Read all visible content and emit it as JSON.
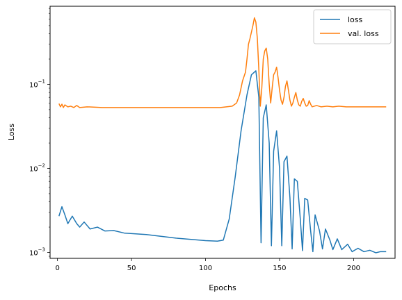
{
  "chart_data": {
    "type": "line",
    "xlabel": "Epochs",
    "ylabel": "Loss",
    "yscale": "log",
    "xlim": [
      -5,
      228
    ],
    "ylim": [
      0.00085,
      0.85
    ],
    "x_ticks": [
      0,
      50,
      100,
      150,
      200
    ],
    "y_ticks": [
      {
        "value": 0.001,
        "base": "10",
        "exp": "−3"
      },
      {
        "value": 0.01,
        "base": "10",
        "exp": "−2"
      },
      {
        "value": 0.1,
        "base": "10",
        "exp": "−1"
      }
    ],
    "grid": false,
    "legend_position": "top-right",
    "series": [
      {
        "name": "loss",
        "color": "#1f77b4",
        "points": [
          [
            1,
            0.0027
          ],
          [
            3,
            0.0035
          ],
          [
            5,
            0.0028
          ],
          [
            7,
            0.0022
          ],
          [
            10,
            0.0027
          ],
          [
            13,
            0.0022
          ],
          [
            15,
            0.002
          ],
          [
            18,
            0.0023
          ],
          [
            22,
            0.0019
          ],
          [
            27,
            0.002
          ],
          [
            32,
            0.0018
          ],
          [
            38,
            0.00182
          ],
          [
            45,
            0.0017
          ],
          [
            60,
            0.00163
          ],
          [
            80,
            0.00148
          ],
          [
            100,
            0.00138
          ],
          [
            108,
            0.00136
          ],
          [
            112,
            0.0014
          ],
          [
            116,
            0.0025
          ],
          [
            120,
            0.0078
          ],
          [
            124,
            0.028
          ],
          [
            128,
            0.075
          ],
          [
            131,
            0.13
          ],
          [
            134,
            0.145
          ],
          [
            136,
            0.07
          ],
          [
            137.5,
            0.0013
          ],
          [
            139,
            0.04
          ],
          [
            141,
            0.057
          ],
          [
            143,
            0.02
          ],
          [
            144.5,
            0.0012
          ],
          [
            146,
            0.016
          ],
          [
            148,
            0.028
          ],
          [
            150,
            0.01
          ],
          [
            151.5,
            0.0012
          ],
          [
            153,
            0.012
          ],
          [
            155,
            0.014
          ],
          [
            157,
            0.0045
          ],
          [
            158.5,
            0.0011
          ],
          [
            160,
            0.0075
          ],
          [
            162,
            0.007
          ],
          [
            164,
            0.0025
          ],
          [
            165.5,
            0.00105
          ],
          [
            167,
            0.0044
          ],
          [
            169,
            0.0042
          ],
          [
            171,
            0.0018
          ],
          [
            172.5,
            0.00102
          ],
          [
            174,
            0.0028
          ],
          [
            177,
            0.0018
          ],
          [
            179,
            0.0011
          ],
          [
            181,
            0.0019
          ],
          [
            184,
            0.0014
          ],
          [
            186,
            0.00108
          ],
          [
            189,
            0.00145
          ],
          [
            192,
            0.00108
          ],
          [
            196,
            0.00125
          ],
          [
            199,
            0.00102
          ],
          [
            203,
            0.00112
          ],
          [
            207,
            0.00102
          ],
          [
            211,
            0.00106
          ],
          [
            215,
            0.00099
          ],
          [
            218,
            0.00102
          ],
          [
            222,
            0.00102
          ]
        ]
      },
      {
        "name": "val. loss",
        "color": "#ff7f0e",
        "points": [
          [
            1,
            0.059
          ],
          [
            2,
            0.054
          ],
          [
            3,
            0.058
          ],
          [
            4,
            0.053
          ],
          [
            5,
            0.057
          ],
          [
            7,
            0.054
          ],
          [
            9,
            0.055
          ],
          [
            11,
            0.053
          ],
          [
            13,
            0.056
          ],
          [
            15,
            0.053
          ],
          [
            20,
            0.054
          ],
          [
            30,
            0.053
          ],
          [
            50,
            0.053
          ],
          [
            80,
            0.053
          ],
          [
            110,
            0.053
          ],
          [
            118,
            0.055
          ],
          [
            121,
            0.06
          ],
          [
            123,
            0.075
          ],
          [
            125,
            0.11
          ],
          [
            127,
            0.14
          ],
          [
            128,
            0.2
          ],
          [
            129,
            0.3
          ],
          [
            130,
            0.35
          ],
          [
            132,
            0.5
          ],
          [
            133,
            0.62
          ],
          [
            134,
            0.55
          ],
          [
            135,
            0.35
          ],
          [
            136,
            0.15
          ],
          [
            137,
            0.055
          ],
          [
            138,
            0.09
          ],
          [
            139,
            0.2
          ],
          [
            140,
            0.25
          ],
          [
            141,
            0.27
          ],
          [
            142,
            0.2
          ],
          [
            143,
            0.1
          ],
          [
            144,
            0.06
          ],
          [
            145,
            0.09
          ],
          [
            146,
            0.13
          ],
          [
            147,
            0.14
          ],
          [
            148,
            0.16
          ],
          [
            149,
            0.12
          ],
          [
            150,
            0.085
          ],
          [
            151,
            0.065
          ],
          [
            152,
            0.058
          ],
          [
            153,
            0.07
          ],
          [
            154,
            0.095
          ],
          [
            155,
            0.11
          ],
          [
            156,
            0.085
          ],
          [
            157,
            0.065
          ],
          [
            158,
            0.055
          ],
          [
            159,
            0.06
          ],
          [
            160,
            0.07
          ],
          [
            161,
            0.08
          ],
          [
            162,
            0.065
          ],
          [
            163,
            0.057
          ],
          [
            164,
            0.055
          ],
          [
            165,
            0.063
          ],
          [
            166,
            0.068
          ],
          [
            167,
            0.06
          ],
          [
            168,
            0.055
          ],
          [
            169,
            0.056
          ],
          [
            170,
            0.064
          ],
          [
            171,
            0.058
          ],
          [
            172,
            0.054
          ],
          [
            175,
            0.056
          ],
          [
            178,
            0.054
          ],
          [
            182,
            0.055
          ],
          [
            186,
            0.054
          ],
          [
            190,
            0.055
          ],
          [
            195,
            0.054
          ],
          [
            200,
            0.054
          ],
          [
            205,
            0.054
          ],
          [
            210,
            0.054
          ],
          [
            215,
            0.054
          ],
          [
            222,
            0.054
          ]
        ]
      }
    ]
  }
}
